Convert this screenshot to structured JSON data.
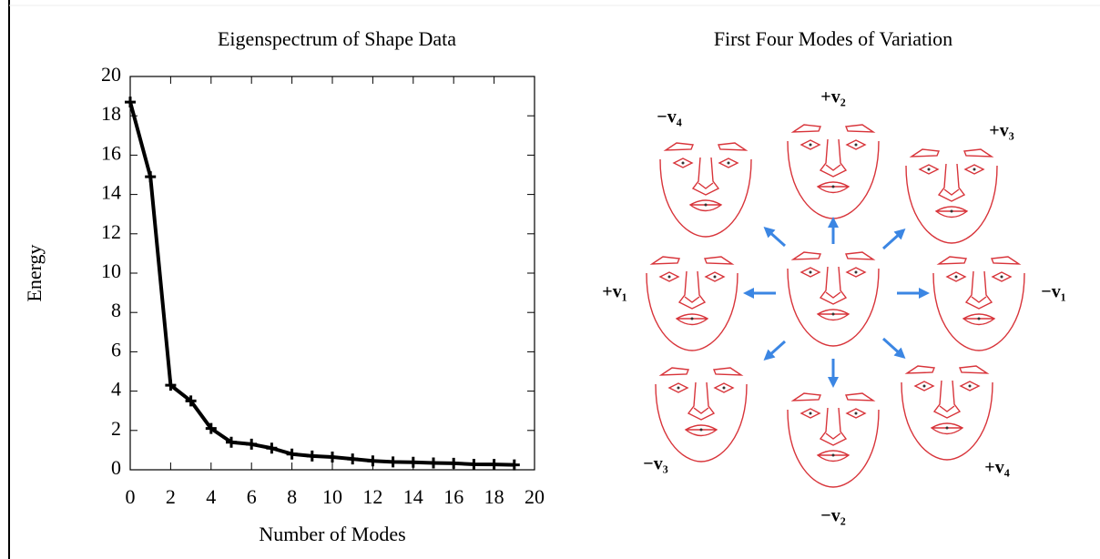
{
  "chart_data": {
    "type": "line",
    "title": "Eigenspectrum of Shape Data",
    "x_label": "Number of Modes",
    "y_label": "Energy",
    "x": [
      0,
      1,
      2,
      3,
      4,
      5,
      6,
      7,
      8,
      9,
      10,
      11,
      12,
      13,
      14,
      15,
      16,
      17,
      18,
      19
    ],
    "series": [
      {
        "color": "#000000",
        "values": [
          18.7,
          14.9,
          4.3,
          3.5,
          2.1,
          1.4,
          1.3,
          1.1,
          0.8,
          0.7,
          0.65,
          0.55,
          0.45,
          0.4,
          0.38,
          0.35,
          0.33,
          0.28,
          0.27,
          0.25
        ]
      }
    ],
    "xlim": [
      0,
      20
    ],
    "xticks": [
      0,
      2,
      4,
      6,
      8,
      10,
      12,
      14,
      16,
      18,
      20
    ],
    "ylim": [
      0,
      20
    ],
    "yticks": [
      0,
      2,
      4,
      6,
      8,
      10,
      12,
      14,
      16,
      18,
      20
    ]
  },
  "diagram": {
    "title": "First Four Modes of Variation",
    "labels": [
      "−v₄",
      "+v₂",
      "+v₃",
      "+v₁",
      "−v₁",
      "−v₃",
      "−v₂",
      "+v₄"
    ]
  }
}
